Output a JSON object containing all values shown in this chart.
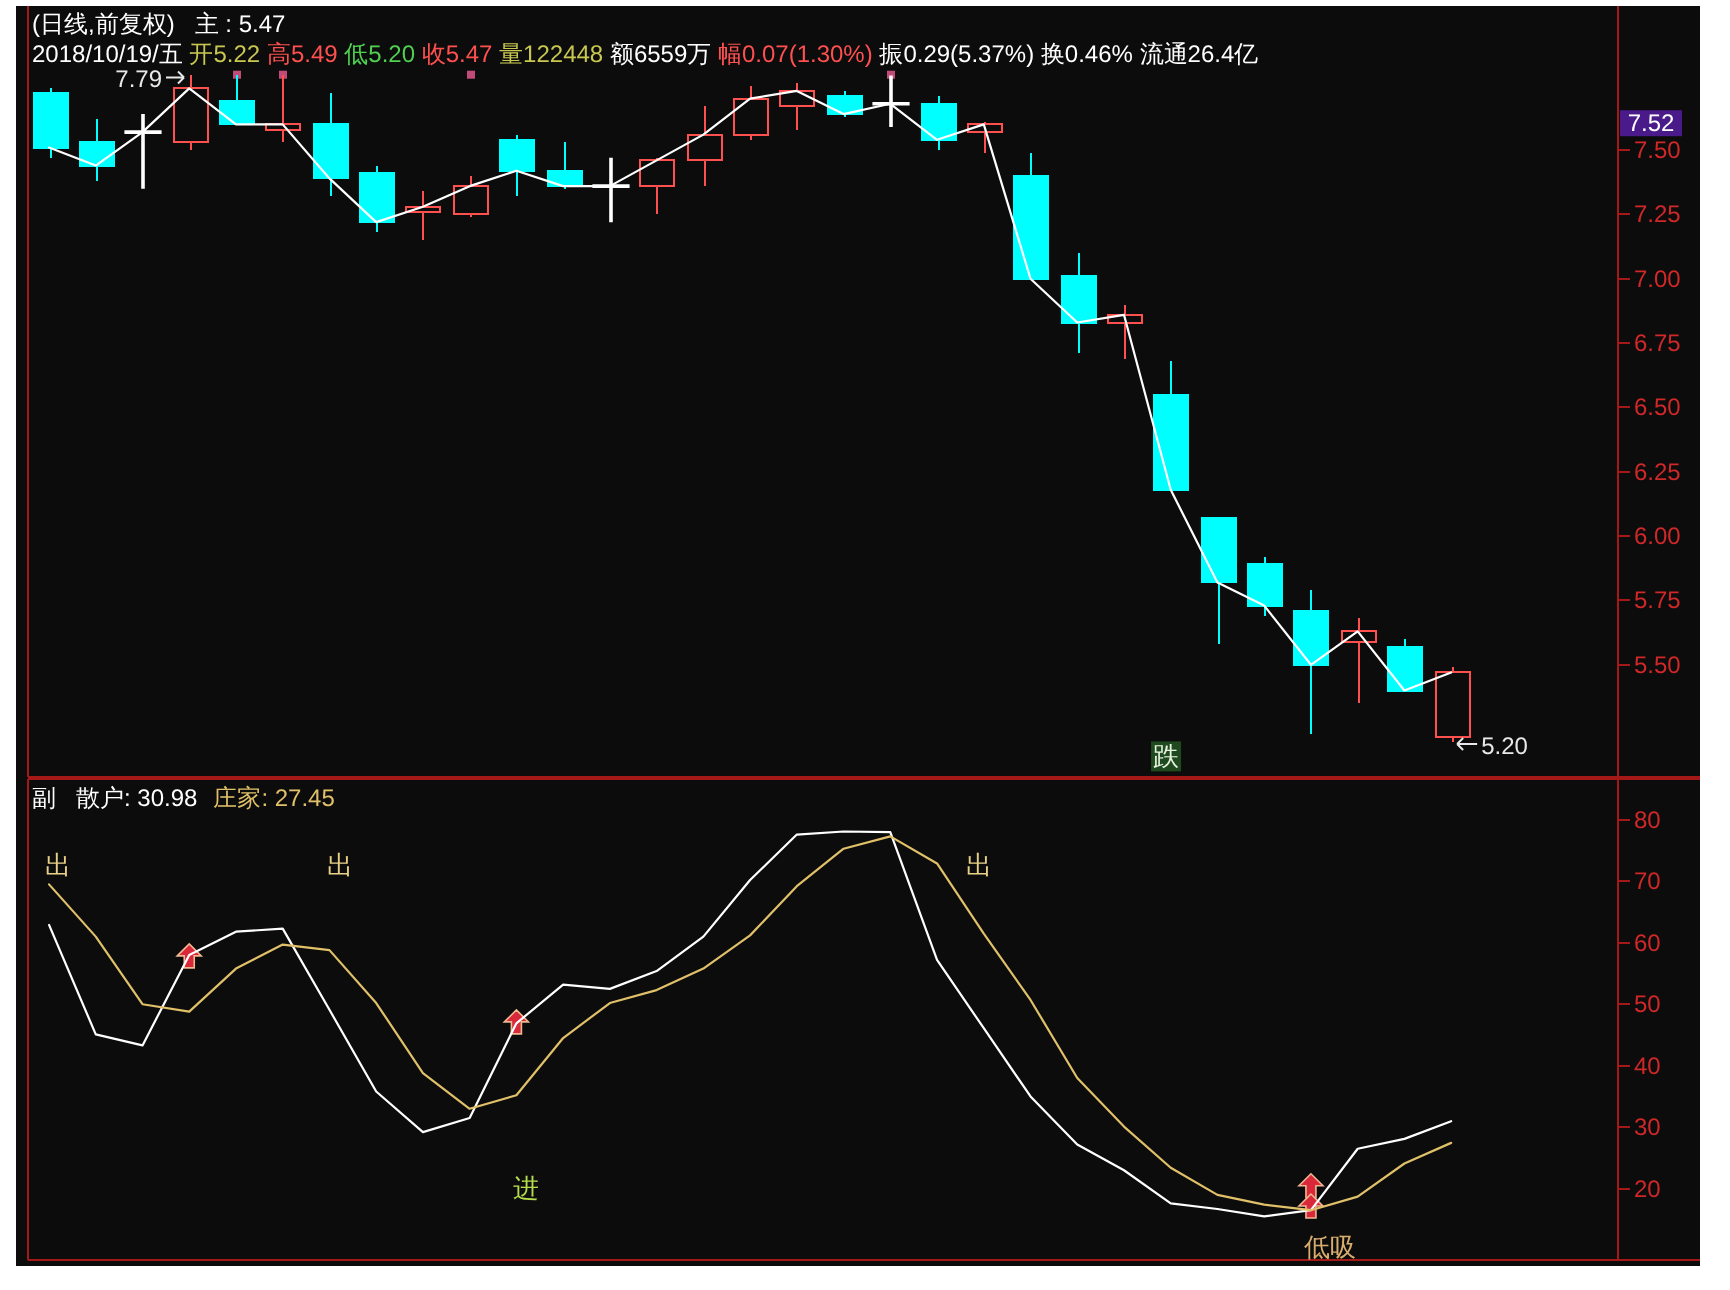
{
  "chart_data": [
    {
      "type": "candlestick",
      "title": "(日线,前复权)",
      "subtitle": "2018/10/19/五 开5.22 高5.49 低5.20 收5.47 量122448 额6559万 幅0.07(1.30%) 振0.29(5.37%) 换0.46% 流通26.4亿",
      "categories": [
        null,
        null,
        null,
        null,
        null,
        null,
        null,
        null,
        null,
        null,
        null,
        null,
        null,
        null,
        null,
        null,
        null,
        null,
        null,
        null,
        null,
        null,
        null,
        null,
        null,
        null,
        null,
        null,
        null,
        null,
        null
      ],
      "ohlc": [
        [
          7.72,
          7.74,
          7.47,
          7.51
        ],
        [
          7.53,
          7.62,
          7.38,
          7.44
        ],
        [
          7.57,
          7.64,
          7.35,
          7.57
        ],
        [
          7.53,
          7.79,
          7.5,
          7.74
        ],
        [
          7.69,
          7.79,
          7.6,
          7.6
        ],
        [
          7.58,
          7.79,
          7.53,
          7.6
        ],
        [
          7.6,
          7.72,
          7.32,
          7.39
        ],
        [
          7.41,
          7.44,
          7.18,
          7.22
        ],
        [
          7.26,
          7.34,
          7.15,
          7.28
        ],
        [
          7.25,
          7.4,
          7.24,
          7.36
        ],
        [
          7.54,
          7.56,
          7.32,
          7.42
        ],
        [
          7.42,
          7.53,
          7.35,
          7.36
        ],
        [
          7.36,
          7.47,
          7.22,
          7.36
        ],
        [
          7.36,
          7.47,
          7.25,
          7.46
        ],
        [
          7.46,
          7.67,
          7.36,
          7.56
        ],
        [
          7.56,
          7.75,
          7.54,
          7.7
        ],
        [
          7.67,
          7.76,
          7.58,
          7.73
        ],
        [
          7.71,
          7.73,
          7.63,
          7.64
        ],
        [
          7.68,
          7.79,
          7.59,
          7.68
        ],
        [
          7.68,
          7.71,
          7.5,
          7.54
        ],
        [
          7.57,
          7.61,
          7.49,
          7.6
        ],
        [
          7.4,
          7.49,
          7.0,
          7.0
        ],
        [
          7.01,
          7.1,
          6.71,
          6.83
        ],
        [
          6.83,
          6.9,
          6.69,
          6.86
        ],
        [
          6.55,
          6.68,
          6.18,
          6.18
        ],
        [
          6.07,
          6.07,
          5.58,
          5.82
        ],
        [
          5.89,
          5.92,
          5.69,
          5.73
        ],
        [
          5.71,
          5.79,
          5.23,
          5.5
        ],
        [
          5.59,
          5.68,
          5.35,
          5.63
        ],
        [
          5.57,
          5.6,
          5.4,
          5.4
        ],
        [
          5.22,
          5.49,
          5.2,
          5.47
        ]
      ],
      "colors": [
        "#00ffff",
        "#00ffff",
        "#ffffff",
        "#ff5050",
        "#00ffff",
        "#ff5050",
        "#00ffff",
        "#00ffff",
        "#ff5050",
        "#ff5050",
        "#00ffff",
        "#00ffff",
        "#ffffff",
        "#ff5050",
        "#ff5050",
        "#ff5050",
        "#ff5050",
        "#00ffff",
        "#ffffff",
        "#00ffff",
        "#ff5050",
        "#00ffff",
        "#00ffff",
        "#ff5050",
        "#00ffff",
        "#00ffff",
        "#00ffff",
        "#00ffff",
        "#ff5050",
        "#00ffff",
        "#ff5050"
      ],
      "series": [
        {
          "name": "主 : 5.47",
          "type": "line",
          "color": "#ffffff",
          "values": [
            7.51,
            7.44,
            7.57,
            7.74,
            7.6,
            7.6,
            7.39,
            7.22,
            7.28,
            7.36,
            7.42,
            7.36,
            7.36,
            7.46,
            7.56,
            7.7,
            7.73,
            7.64,
            7.68,
            7.54,
            7.6,
            7.0,
            6.83,
            6.86,
            6.18,
            5.82,
            5.73,
            5.5,
            5.63,
            5.4,
            5.47
          ]
        }
      ],
      "ylim": [
        5.06,
        8.06
      ],
      "yticks": [
        {
          "value": 7.5,
          "label": "7.50"
        },
        7.25,
        {
          "value": 7.0,
          "label": "7.00"
        },
        6.75,
        {
          "value": 6.5,
          "label": "6.50"
        },
        6.25,
        {
          "value": 6.0,
          "label": "6.00"
        },
        5.75,
        {
          "value": 5.5,
          "label": "5.50"
        }
      ],
      "annotations": [
        "7.79",
        "5.20",
        "7.52",
        "跌"
      ]
    },
    {
      "type": "line",
      "title": "副",
      "categories": [
        null,
        null,
        null,
        null,
        null,
        null,
        null,
        null,
        null,
        null,
        null,
        null,
        null,
        null,
        null,
        null,
        null,
        null,
        null,
        null,
        null,
        null,
        null,
        null,
        null,
        null,
        null,
        null,
        null,
        null,
        null
      ],
      "series": [
        {
          "name": "散户: 30.98",
          "color": "#ffffff",
          "values": [
            62.9,
            45.1,
            43.3,
            58.0,
            61.8,
            62.3,
            49.1,
            35.8,
            29.2,
            31.5,
            46.9,
            53.2,
            52.5,
            55.4,
            61.0,
            70.2,
            77.6,
            78.1,
            78.0,
            57.2,
            46.1,
            35.0,
            27.2,
            23.0,
            17.6,
            16.7,
            15.5,
            16.5,
            26.5,
            28.1,
            30.98
          ]
        },
        {
          "name": "庄家: 27.45",
          "color": "#e0c068",
          "values": [
            69.5,
            61.0,
            50.0,
            48.8,
            55.8,
            59.7,
            58.8,
            50.2,
            38.8,
            33.0,
            35.2,
            44.5,
            50.2,
            52.3,
            55.8,
            61.2,
            69.2,
            75.3,
            77.3,
            72.9,
            61.5,
            50.7,
            38.0,
            30.1,
            23.4,
            19.0,
            17.4,
            16.5,
            18.7,
            24.1,
            27.45
          ]
        }
      ],
      "ylim": [
        8.4,
        86.8
      ],
      "yticks": [
        20,
        30,
        40,
        50,
        60,
        70,
        80
      ],
      "annotations": [
        "出",
        "出",
        "出",
        "进",
        "低吸"
      ]
    }
  ]
}
